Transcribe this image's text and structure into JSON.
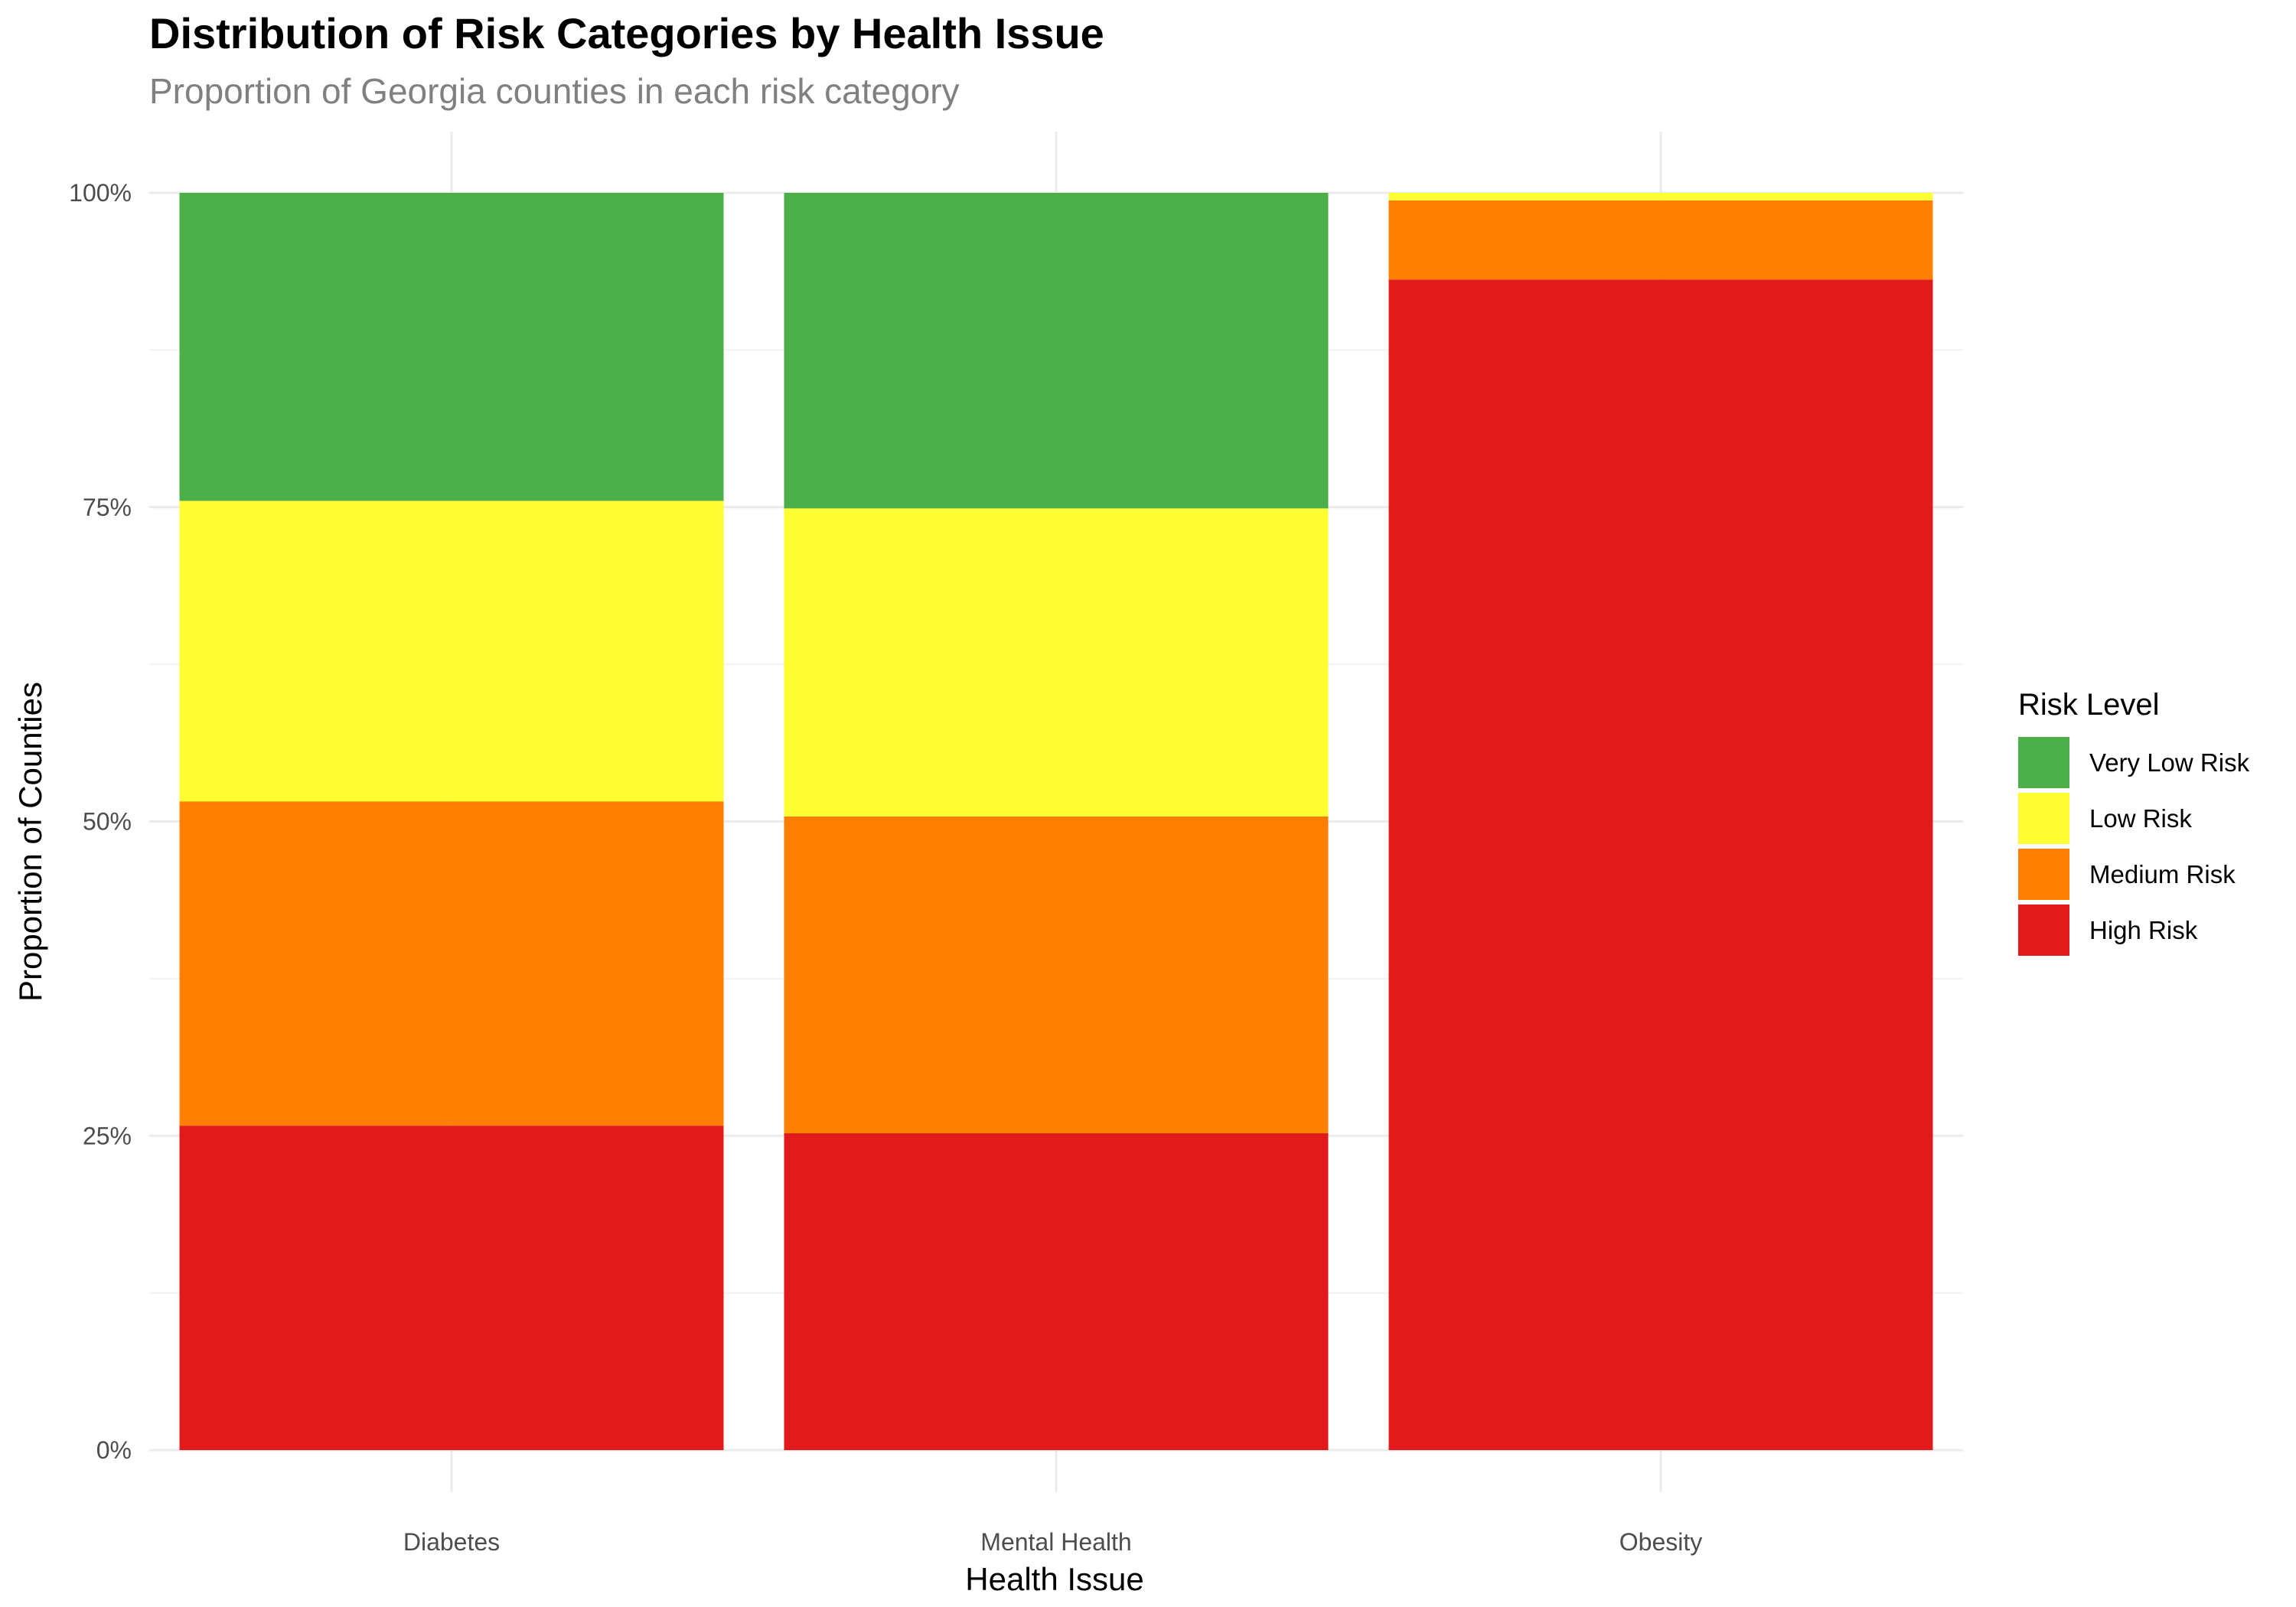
{
  "chart_data": {
    "type": "bar",
    "stacked": true,
    "title": "Distribution of Risk Categories by Health Issue",
    "subtitle": "Proportion of Georgia counties in each risk category",
    "xlabel": "Health Issue",
    "ylabel": "Proportion of Counties",
    "categories": [
      "Diabetes",
      "Mental Health",
      "Obesity"
    ],
    "ylim": [
      0,
      1
    ],
    "y_ticks": [
      0,
      0.25,
      0.5,
      0.75,
      1.0
    ],
    "y_tick_labels": [
      "0%",
      "25%",
      "50%",
      "75%",
      "100%"
    ],
    "grid": true,
    "legend": {
      "title": "Risk Level",
      "position": "right"
    },
    "series": [
      {
        "name": "High Risk",
        "color": "#e31a1c",
        "values": [
          0.258,
          0.252,
          0.931
        ]
      },
      {
        "name": "Medium Risk",
        "color": "#ff7f00",
        "values": [
          0.258,
          0.252,
          0.063
        ]
      },
      {
        "name": "Low Risk",
        "color": "#ffff33",
        "values": [
          0.239,
          0.245,
          0.006
        ]
      },
      {
        "name": "Very Low Risk",
        "color": "#4daf4a",
        "values": [
          0.245,
          0.251,
          0.0
        ]
      }
    ],
    "legend_order": [
      "Very Low Risk",
      "Low Risk",
      "Medium Risk",
      "High Risk"
    ]
  }
}
